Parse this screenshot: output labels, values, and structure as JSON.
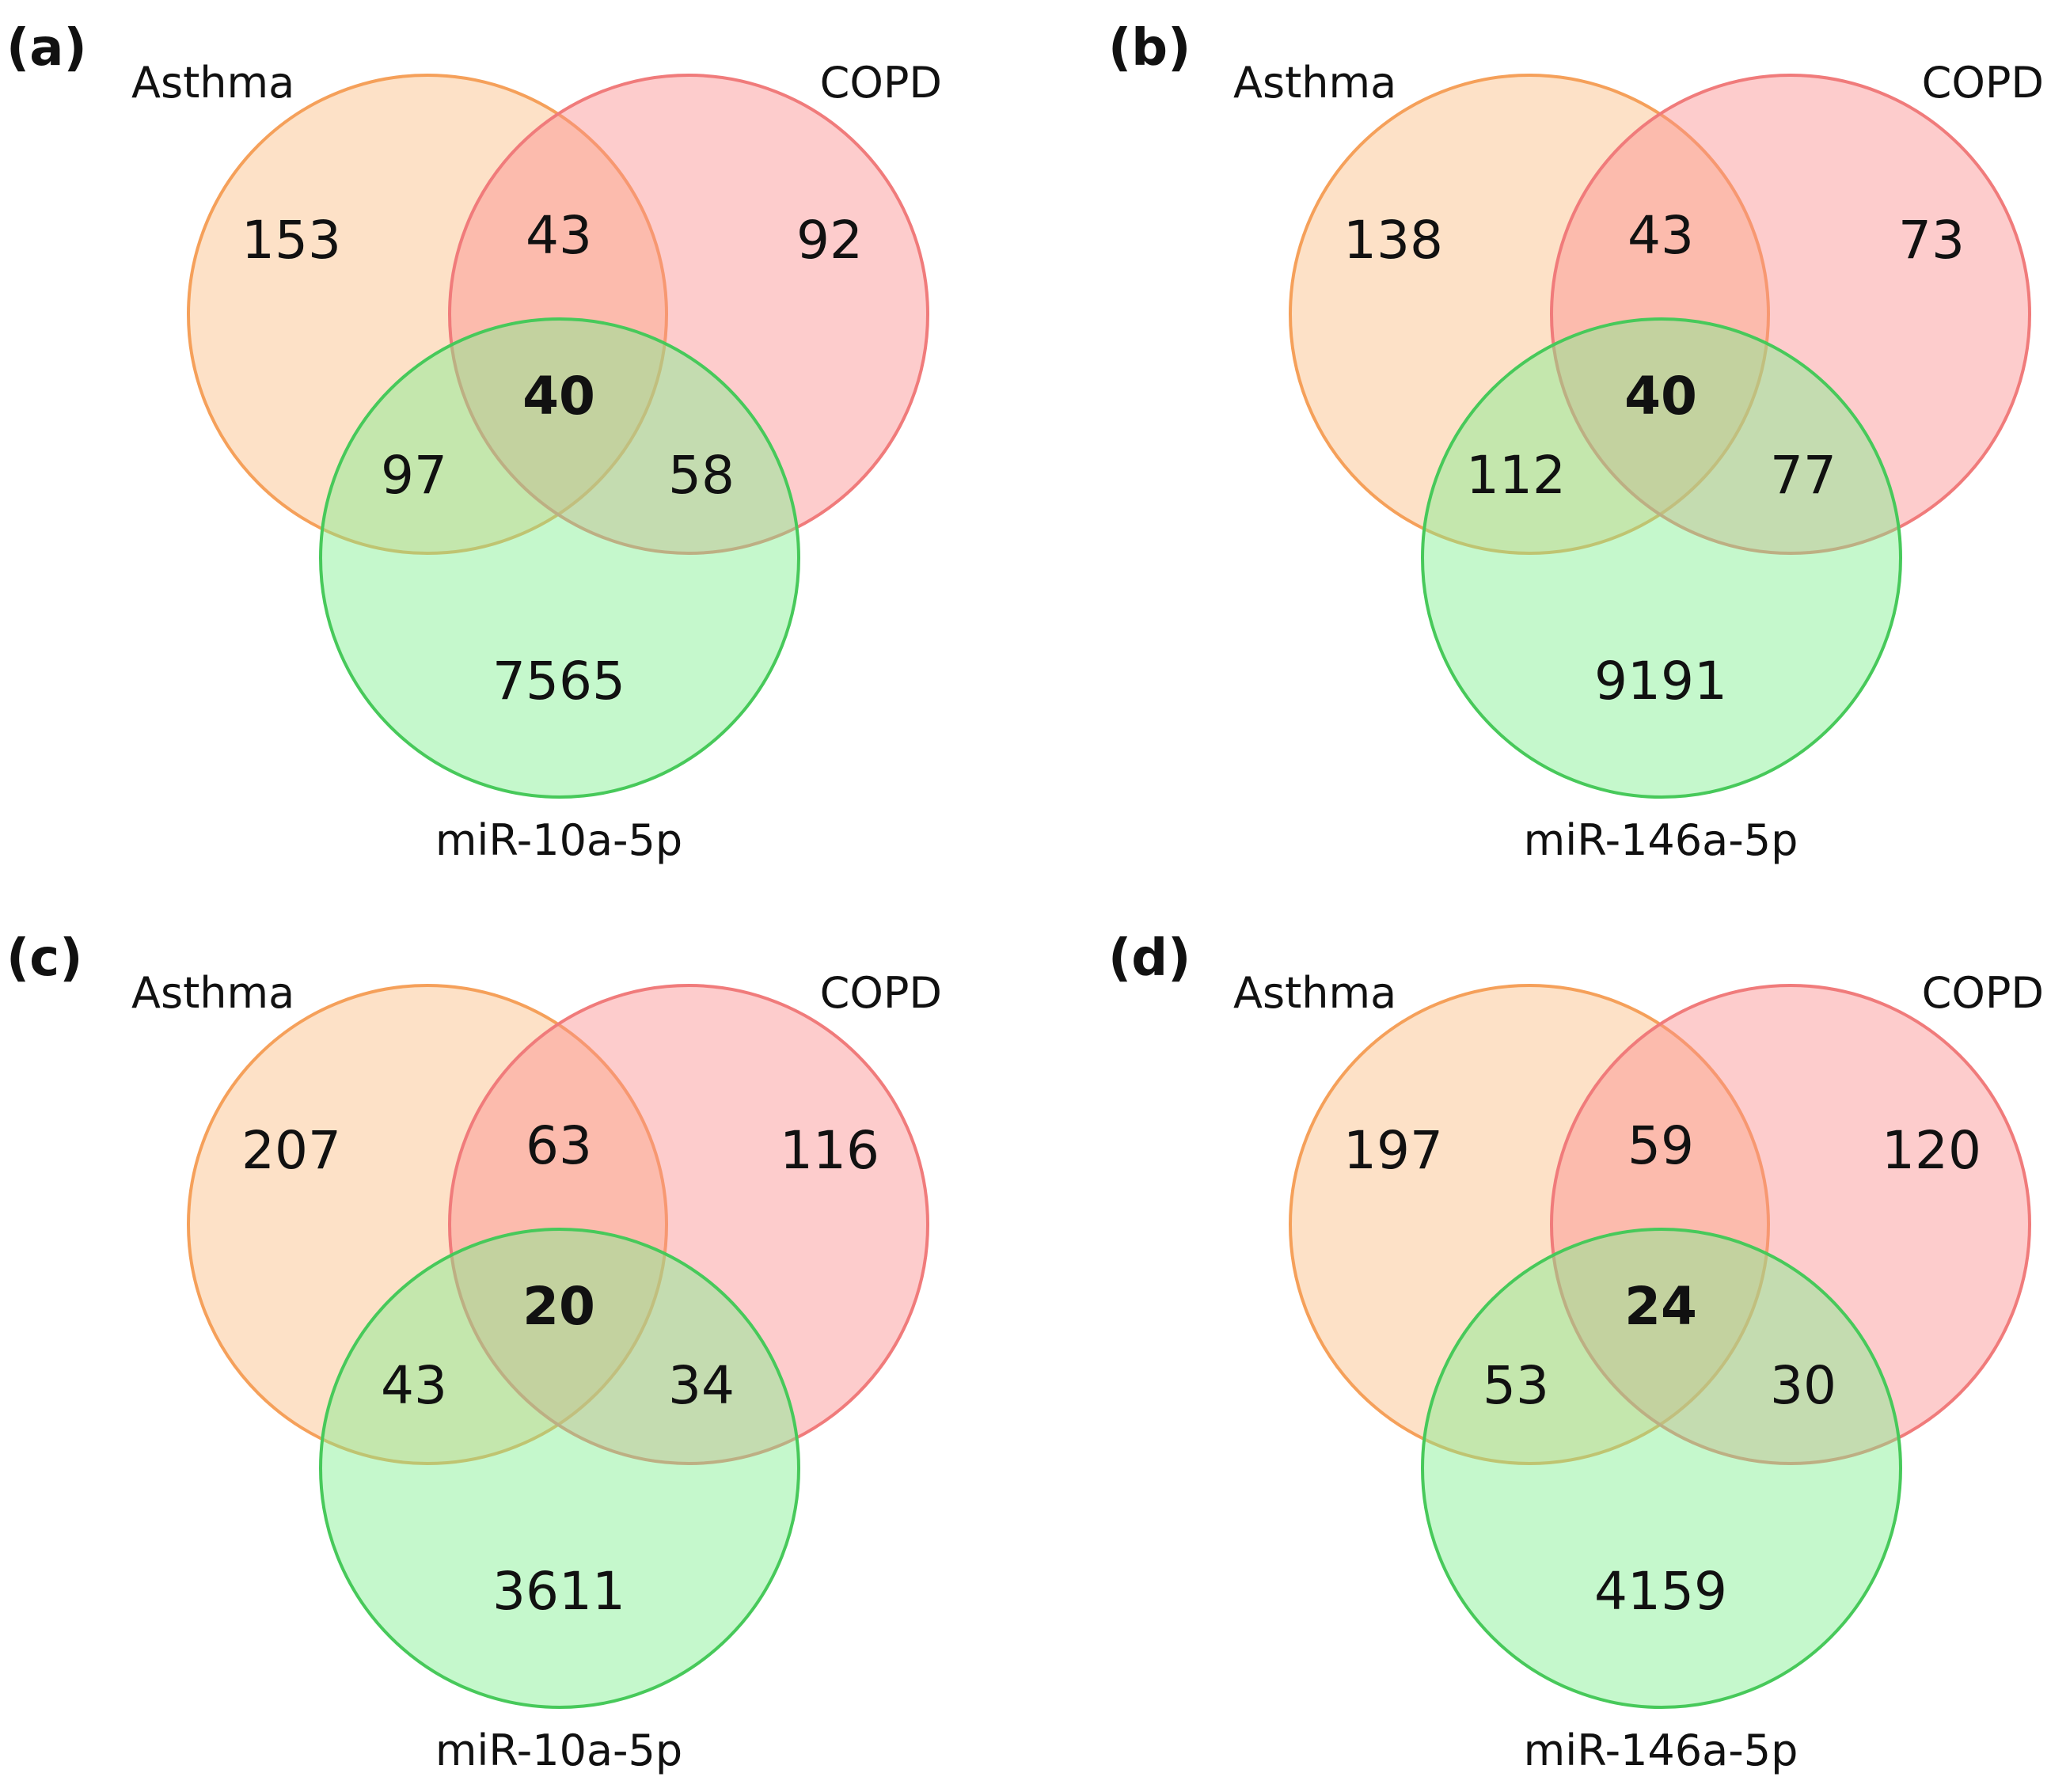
{
  "figure": {
    "panels": [
      {
        "panel_label": "(a)",
        "sets": {
          "a": "Asthma",
          "b": "COPD",
          "c": "miR-10a-5p"
        },
        "counts": {
          "a_only": "153",
          "ab": "43",
          "b_only": "92",
          "abc": "40",
          "ac": "97",
          "bc": "58",
          "c_only": "7565"
        }
      },
      {
        "panel_label": "(b)",
        "sets": {
          "a": "Asthma",
          "b": "COPD",
          "c": "miR-146a-5p"
        },
        "counts": {
          "a_only": "138",
          "ab": "43",
          "b_only": "73",
          "abc": "40",
          "ac": "112",
          "bc": "77",
          "c_only": "9191"
        }
      },
      {
        "panel_label": "(c)",
        "sets": {
          "a": "Asthma",
          "b": "COPD",
          "c": "miR-10a-5p"
        },
        "counts": {
          "a_only": "207",
          "ab": "63",
          "b_only": "116",
          "abc": "20",
          "ac": "43",
          "bc": "34",
          "c_only": "3611"
        }
      },
      {
        "panel_label": "(d)",
        "sets": {
          "a": "Asthma",
          "b": "COPD",
          "c": "miR-146a-5p"
        },
        "counts": {
          "a_only": "197",
          "ab": "59",
          "b_only": "120",
          "abc": "24",
          "ac": "53",
          "bc": "30",
          "c_only": "4159"
        }
      }
    ],
    "colors": {
      "asthma_fill": "#fbbd83",
      "asthma_stroke": "#f5a05a",
      "copd_fill": "#fb8f8f",
      "copd_stroke": "#f07b7b",
      "mir_fill": "#7ff08f",
      "mir_stroke": "#47c95a"
    }
  }
}
